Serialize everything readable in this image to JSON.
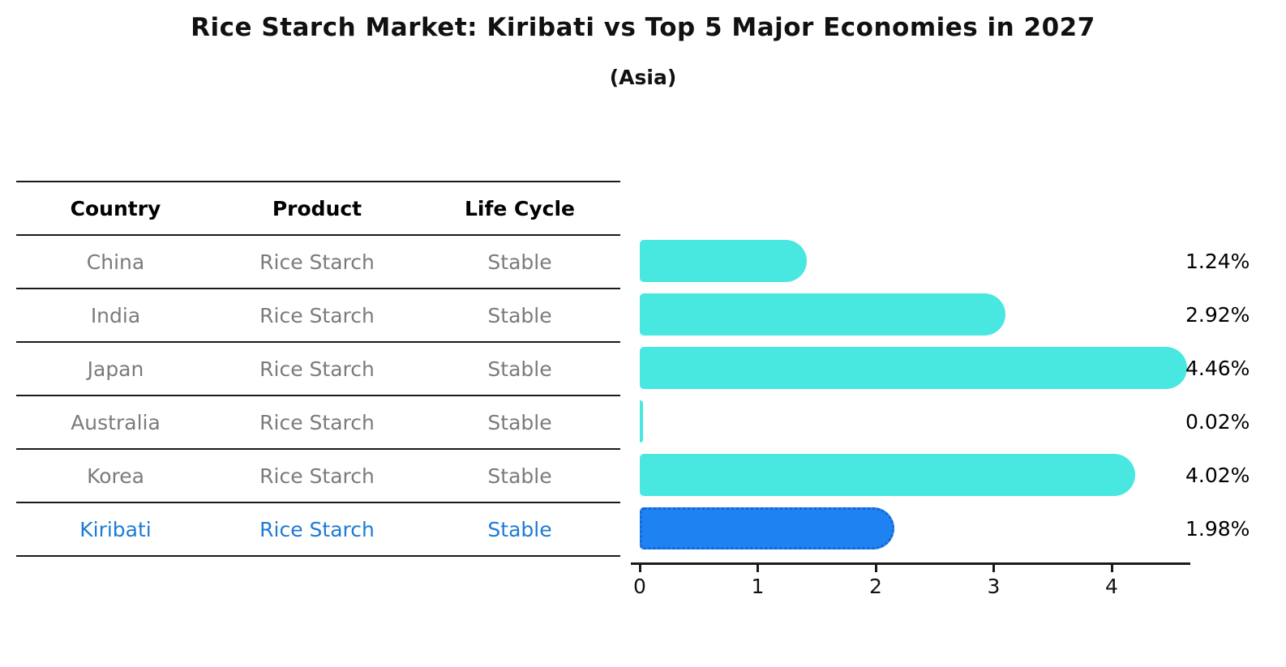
{
  "title": "Rice Starch Market: Kiribati vs Top 5 Major Economies in 2027",
  "subtitle": "(Asia)",
  "table": {
    "headers": [
      "Country",
      "Product",
      "Life Cycle"
    ],
    "rows": [
      {
        "country": "China",
        "product": "Rice Starch",
        "life_cycle": "Stable",
        "highlight": false
      },
      {
        "country": "India",
        "product": "Rice Starch",
        "life_cycle": "Stable",
        "highlight": false
      },
      {
        "country": "Japan",
        "product": "Rice Starch",
        "life_cycle": "Stable",
        "highlight": false
      },
      {
        "country": "Australia",
        "product": "Rice Starch",
        "life_cycle": "Stable",
        "highlight": false
      },
      {
        "country": "Korea",
        "product": "Rice Starch",
        "life_cycle": "Stable",
        "highlight": false
      },
      {
        "country": "Kiribati",
        "product": "Rice Starch",
        "life_cycle": "Stable",
        "highlight": true
      }
    ]
  },
  "chart_data": {
    "type": "bar",
    "orientation": "horizontal",
    "title": "Rice Starch Market: Kiribati vs Top 5 Major Economies in 2027",
    "subtitle": "(Asia)",
    "categories": [
      "China",
      "India",
      "Japan",
      "Australia",
      "Korea",
      "Kiribati"
    ],
    "values": [
      1.24,
      2.92,
      4.46,
      0.02,
      4.02,
      1.98
    ],
    "value_labels": [
      "1.24%",
      "2.92%",
      "4.46%",
      "0.02%",
      "4.02%",
      "1.98%"
    ],
    "unit": "%",
    "xticks": [
      "0",
      "1",
      "2",
      "3",
      "4"
    ],
    "xlim": [
      0,
      4.67
    ],
    "grid": false,
    "legend": false,
    "highlight_index": 5
  },
  "colors": {
    "bar": "#48e7e0",
    "highlight_bar": "#1e82f0",
    "highlight_border": "#1565d8",
    "highlight_text": "#1e7ad4",
    "row_text": "#7b7b7b",
    "axis": "#1a1a1a"
  }
}
